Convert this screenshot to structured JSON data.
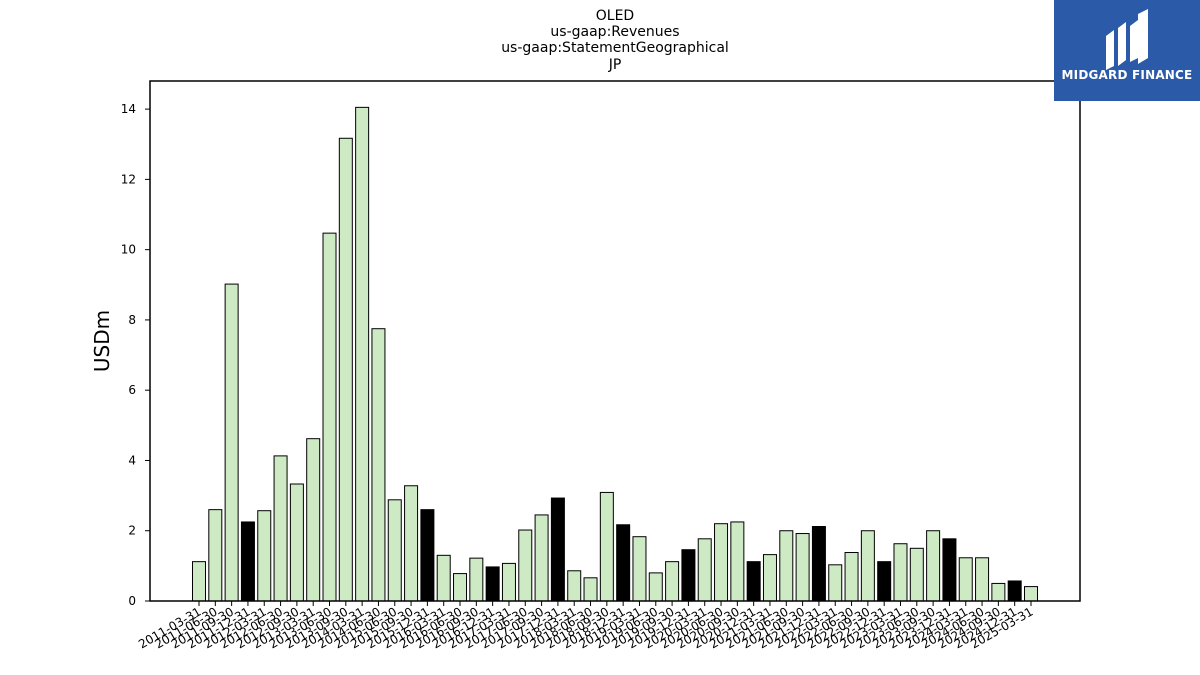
{
  "logo": {
    "name": "MIDGARD FINANCE",
    "icon": "midgard-logo-icon",
    "color": "#2b5aa8"
  },
  "chart_data": {
    "type": "bar",
    "title": [
      "OLED",
      "us-gaap:Revenues",
      "us-gaap:StatementGeographical",
      "JP"
    ],
    "xlabel": "",
    "ylabel": "USDm",
    "ylim": [
      0,
      14.8
    ],
    "yticks": [
      0,
      2,
      4,
      6,
      8,
      10,
      12,
      14
    ],
    "grid": false,
    "colors": {
      "quarter": "#cdeac5",
      "fiscal_year_end": "#000000",
      "edge": "#000000"
    },
    "categories": [
      "2011-03-31",
      "2011-06-30",
      "2011-09-30",
      "2011-12-31",
      "2012-03-31",
      "2012-06-30",
      "2012-09-30",
      "2013-03-31",
      "2013-06-30",
      "2013-09-30",
      "2014-03-31",
      "2014-06-30",
      "2015-06-30",
      "2015-09-30",
      "2015-12-31",
      "2016-03-31",
      "2016-06-30",
      "2016-09-30",
      "2016-12-31",
      "2017-03-31",
      "2017-06-30",
      "2017-09-30",
      "2017-12-31",
      "2018-03-31",
      "2018-06-30",
      "2018-09-30",
      "2018-12-31",
      "2019-03-31",
      "2019-06-30",
      "2019-09-30",
      "2019-12-31",
      "2020-03-31",
      "2020-06-30",
      "2020-09-30",
      "2020-12-31",
      "2021-03-31",
      "2021-06-30",
      "2021-09-30",
      "2021-12-31",
      "2022-03-31",
      "2022-06-30",
      "2022-09-30",
      "2022-12-31",
      "2023-03-31",
      "2023-06-30",
      "2023-09-30",
      "2023-12-31",
      "2024-03-31",
      "2024-06-30",
      "2024-09-30",
      "2024-12-31",
      "2025-03-31"
    ],
    "values": [
      1.12,
      2.6,
      9.02,
      2.25,
      2.57,
      4.13,
      3.33,
      4.62,
      10.47,
      13.17,
      14.05,
      7.75,
      2.88,
      3.28,
      2.6,
      1.3,
      0.78,
      1.22,
      0.97,
      1.07,
      2.02,
      2.45,
      2.93,
      0.86,
      0.66,
      3.09,
      2.17,
      1.83,
      0.8,
      1.12,
      1.46,
      1.77,
      2.2,
      2.25,
      1.12,
      1.32,
      2.0,
      1.92,
      2.12,
      1.03,
      1.38,
      2.0,
      1.12,
      1.63,
      1.5,
      2.0,
      1.77,
      1.23,
      1.23,
      0.5,
      0.57,
      0.41
    ],
    "highlight": [
      false,
      false,
      false,
      true,
      false,
      false,
      false,
      false,
      false,
      false,
      false,
      false,
      false,
      false,
      true,
      false,
      false,
      false,
      true,
      false,
      false,
      false,
      true,
      false,
      false,
      false,
      true,
      false,
      false,
      false,
      true,
      false,
      false,
      false,
      true,
      false,
      false,
      false,
      true,
      false,
      false,
      false,
      true,
      false,
      false,
      false,
      true,
      false,
      false,
      false,
      true,
      false
    ]
  }
}
